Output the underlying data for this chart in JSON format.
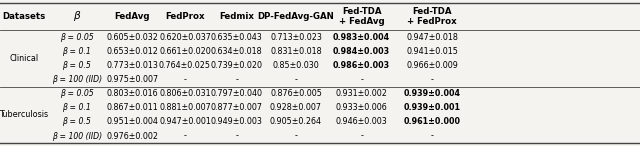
{
  "sections": [
    {
      "name": "Clinical",
      "rows": [
        {
          "beta": "β = 0.05",
          "FedAvg": "0.605±0.032",
          "FedProx": "0.620±0.037",
          "Fedmix": "0.635±0.043",
          "DP": "0.713±0.023",
          "TDA_avg": "0.983±0.004",
          "TDA_prox": "0.947±0.018",
          "bold": "TDA_avg"
        },
        {
          "beta": "β = 0.1",
          "FedAvg": "0.653±0.012",
          "FedProx": "0.661±0.020",
          "Fedmix": "0.634±0.018",
          "DP": "0.831±0.018",
          "TDA_avg": "0.984±0.003",
          "TDA_prox": "0.941±0.015",
          "bold": "TDA_avg"
        },
        {
          "beta": "β = 0.5",
          "FedAvg": "0.773±0.013",
          "FedProx": "0.764±0.025",
          "Fedmix": "0.739±0.020",
          "DP": "0.85±0.030",
          "TDA_avg": "0.986±0.003",
          "TDA_prox": "0.966±0.009",
          "bold": "TDA_avg"
        },
        {
          "beta": "β = 100 (IID)",
          "FedAvg": "0.975±0.007",
          "FedProx": "-",
          "Fedmix": "-",
          "DP": "-",
          "TDA_avg": "-",
          "TDA_prox": "-",
          "bold": ""
        }
      ]
    },
    {
      "name": "Tuberculosis",
      "rows": [
        {
          "beta": "β = 0.05",
          "FedAvg": "0.803±0.016",
          "FedProx": "0.806±0.031",
          "Fedmix": "0.797±0.040",
          "DP": "0.876±0.005",
          "TDA_avg": "0.931±0.002",
          "TDA_prox": "0.939±0.004",
          "bold": "TDA_prox"
        },
        {
          "beta": "β = 0.1",
          "FedAvg": "0.867±0.011",
          "FedProx": "0.881±0.007",
          "Fedmix": "0.877±0.007",
          "DP": "0.928±0.007",
          "TDA_avg": "0.933±0.006",
          "TDA_prox": "0.939±0.001",
          "bold": "TDA_prox"
        },
        {
          "beta": "β = 0.5",
          "FedAvg": "0.951±0.004",
          "FedProx": "0.947±0.001",
          "Fedmix": "0.949±0.003",
          "DP": "0.905±0.264",
          "TDA_avg": "0.946±0.003",
          "TDA_prox": "0.961±0.000",
          "bold": "TDA_prox"
        },
        {
          "beta": "β = 100 (IID)",
          "FedAvg": "0.976±0.002",
          "FedProx": "-",
          "Fedmix": "-",
          "DP": "-",
          "TDA_avg": "-",
          "TDA_prox": "-",
          "bold": ""
        }
      ]
    }
  ],
  "col_keys": [
    "FedAvg",
    "FedProx",
    "Fedmix",
    "DP",
    "TDA_avg",
    "TDA_prox"
  ],
  "col_headers": [
    "FedAvg",
    "FedProx",
    "Fedmix",
    "DP-FedAvg-GAN",
    "Fed-TDA\n+ FedAvg",
    "Fed-TDA\n+ FedProx"
  ],
  "bg_color": "#f5f3ef",
  "line_color": "#444444",
  "font_size": 5.8,
  "header_font_size": 6.2,
  "figwidth": 6.4,
  "figheight": 1.46
}
